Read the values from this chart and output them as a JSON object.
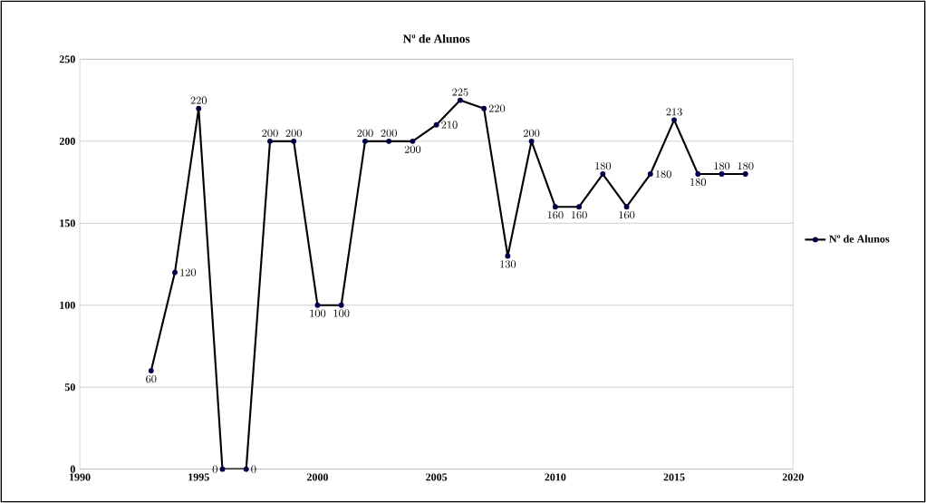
{
  "chart_data": {
    "type": "line",
    "title": "Nº de Alunos",
    "x": [
      1993,
      1994,
      1995,
      1996,
      1997,
      1998,
      1999,
      2000,
      2001,
      2002,
      2003,
      2004,
      2005,
      2006,
      2007,
      2008,
      2009,
      2010,
      2011,
      2012,
      2013,
      2014,
      2015,
      2016,
      2017,
      2018
    ],
    "series": [
      {
        "name": "Nº de Alunos",
        "color": "#000000",
        "values": [
          60,
          120,
          220,
          0,
          0,
          200,
          200,
          100,
          100,
          200,
          200,
          200,
          210,
          225,
          220,
          130,
          200,
          160,
          160,
          180,
          160,
          180,
          213,
          180,
          180,
          180
        ]
      }
    ],
    "xlim": [
      1990,
      2020
    ],
    "xticks": [
      1990,
      1995,
      2000,
      2005,
      2010,
      2015,
      2020
    ],
    "ylim": [
      0,
      250
    ],
    "yticks": [
      0,
      50,
      100,
      150,
      200,
      250
    ],
    "grid": "y",
    "legend": "right",
    "marker": "circle",
    "line_style": "solid",
    "data_labels": true
  }
}
